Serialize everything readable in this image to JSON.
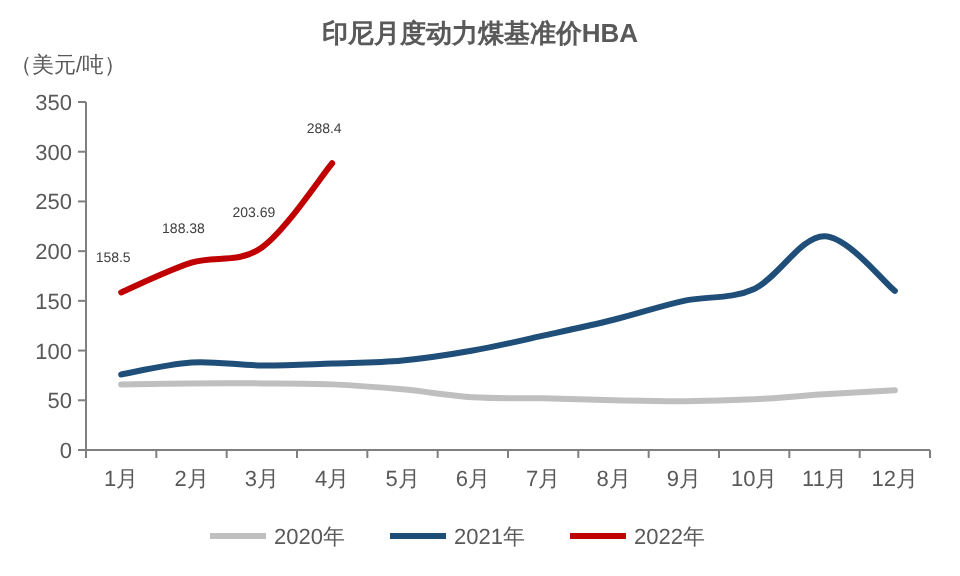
{
  "chart_data": {
    "type": "line",
    "title": "印尼月度动力煤基准价HBA",
    "ylabel": "（美元/吨）",
    "categories": [
      "1月",
      "2月",
      "3月",
      "4月",
      "5月",
      "6月",
      "7月",
      "8月",
      "9月",
      "10月",
      "11月",
      "12月"
    ],
    "ylim": [
      0,
      350
    ],
    "yticks": [
      0,
      50,
      100,
      150,
      200,
      250,
      300,
      350
    ],
    "grid": false,
    "legend": "bottom",
    "marker": "none",
    "line_style": "solid",
    "series": [
      {
        "name": "2020年",
        "color": "#bfbfbf",
        "values": [
          66,
          67,
          67,
          66,
          61,
          53,
          52,
          50,
          49,
          51,
          56,
          60
        ]
      },
      {
        "name": "2021年",
        "color": "#1f4e79",
        "values": [
          76,
          88,
          85,
          87,
          90,
          100,
          115,
          131,
          150,
          162,
          215,
          160
        ]
      },
      {
        "name": "2022年",
        "color": "#c00000",
        "values": [
          158.5,
          188.38,
          203.69,
          288.4,
          null,
          null,
          null,
          null,
          null,
          null,
          null,
          null
        ],
        "value_labels": [
          "158.5",
          "188.38",
          "203.69",
          "288.4",
          null,
          null,
          null,
          null,
          null,
          null,
          null,
          null
        ]
      }
    ]
  }
}
